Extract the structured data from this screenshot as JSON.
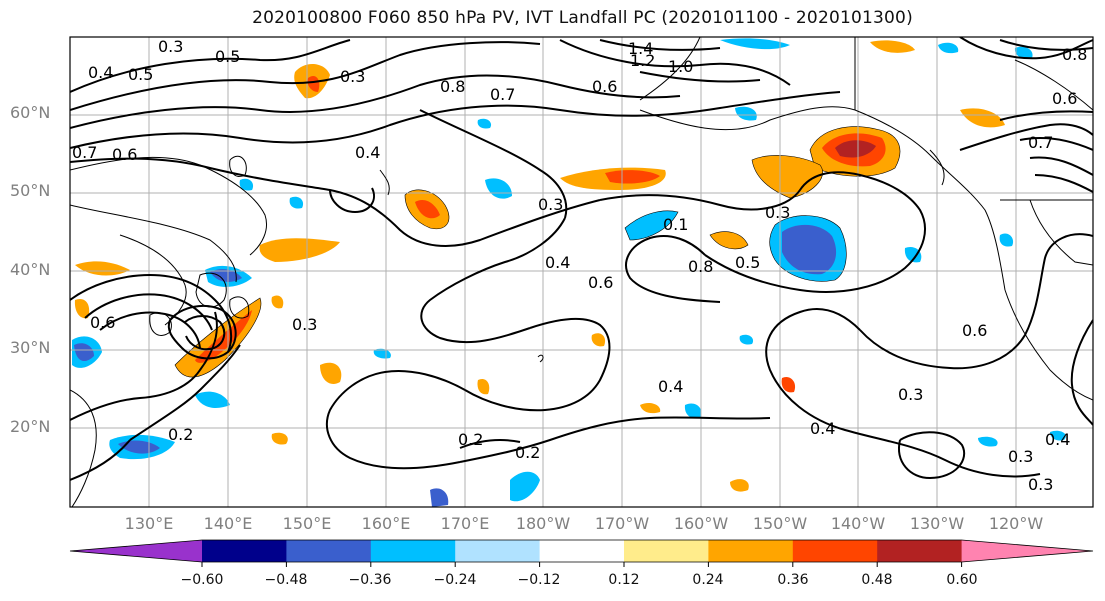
{
  "title": "2020100800 F060 850 hPa PV, IVT Landfall PC (2020101100 - 2020101300)",
  "lat_labels": [
    "60°N",
    "50°N",
    "40°N",
    "30°N",
    "20°N"
  ],
  "lon_labels": [
    "130°E",
    "140°E",
    "150°E",
    "160°E",
    "170°E",
    "180°W",
    "170°W",
    "160°W",
    "150°W",
    "140°W",
    "130°W",
    "120°W"
  ],
  "colorbar": {
    "colors": [
      "#9932cc",
      "#00008b",
      "#3a5fcd",
      "#00bfff",
      "#b0e2ff",
      "#ffffff",
      "#ffec8b",
      "#ffa500",
      "#ff4500",
      "#b22222",
      "#ff83b0"
    ],
    "tick_labels": [
      "−0.60",
      "−0.48",
      "−0.36",
      "−0.24",
      "−0.12",
      "0.12",
      "0.24",
      "0.36",
      "0.48",
      "0.60"
    ]
  },
  "contour_labels": [
    "0.3",
    "0.5",
    "0.4",
    "0.5",
    "0.8",
    "0.7",
    "0.6",
    "0.3",
    "1.4",
    "1.2",
    "1.0",
    "0.8",
    "0.6",
    "0.7",
    "0.6",
    "0.4",
    "0.3",
    "0.7",
    "0.1",
    "0.8",
    "0.5",
    "0.3",
    "0.4",
    "0.6",
    "0.3",
    "0.6",
    "0.4",
    "0.3",
    "0.4",
    "0.2",
    "0.2",
    "0.3",
    "0.4",
    "0.3",
    "0.6",
    "0.2"
  ]
}
